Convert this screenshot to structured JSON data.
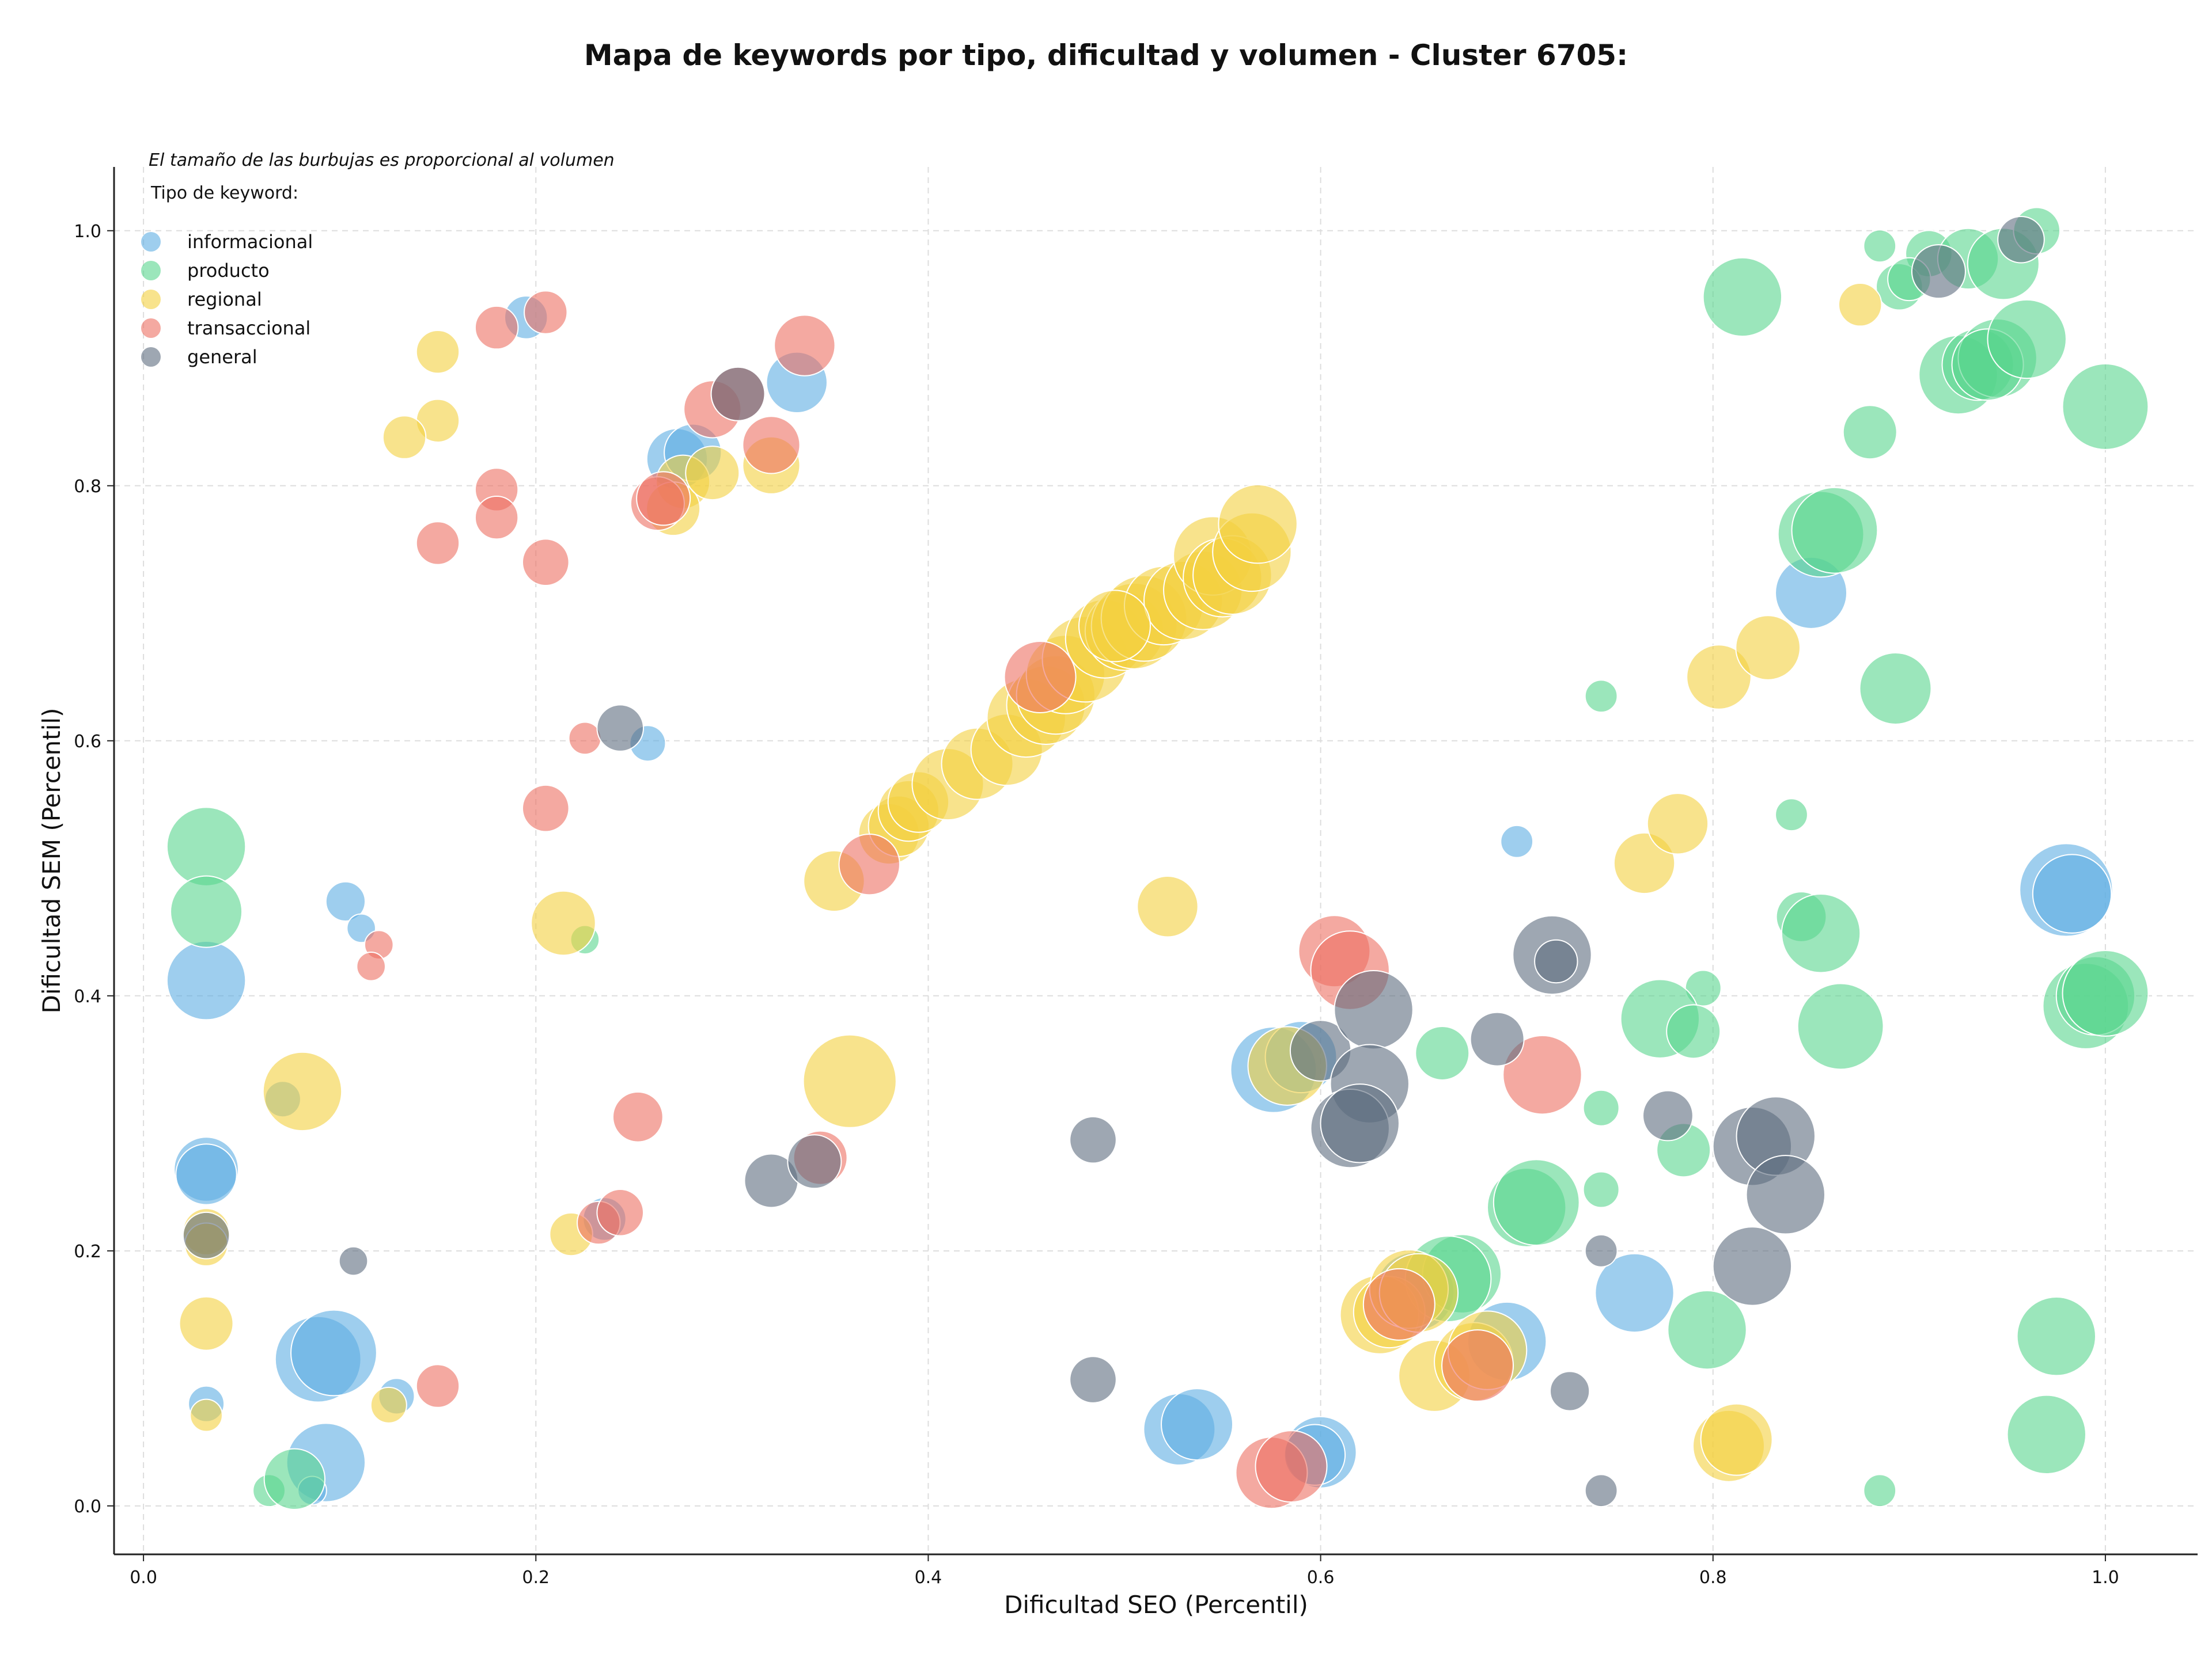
{
  "chart_data": {
    "type": "scatter",
    "title": "Mapa de keywords por tipo, dificultad y volumen - Cluster 6705:",
    "xlabel": "Dificultad SEO (Percentil)",
    "ylabel": "Dificultad SEM (Percentil)",
    "xlim": [
      -0.015,
      1.047
    ],
    "ylim": [
      -0.038,
      1.05
    ],
    "xticks": [
      "0.0",
      "0.2",
      "0.4",
      "0.6",
      "0.8",
      "1.0"
    ],
    "yticks": [
      "0.0",
      "0.2",
      "0.4",
      "0.6",
      "0.8",
      "1.0"
    ],
    "grid": true,
    "annotation": "El tamaño de las burbujas es proporcional al volumen",
    "legend": {
      "title": "Tipo de keyword:",
      "position": "top-left",
      "entries": [
        "informacional",
        "producto",
        "regional",
        "transaccional",
        "general"
      ]
    },
    "series": [
      {
        "name": "informacional",
        "color": "#5DADE2",
        "points": [
          [
            0.195,
            0.932,
            12
          ],
          [
            0.333,
            0.881,
            17
          ],
          [
            0.272,
            0.821,
            17
          ],
          [
            0.28,
            0.826,
            16
          ],
          [
            0.257,
            0.598,
            10
          ],
          [
            0.103,
            0.474,
            11
          ],
          [
            0.111,
            0.453,
            8
          ],
          [
            0.032,
            0.412,
            22
          ],
          [
            0.071,
            0.319,
            10
          ],
          [
            0.032,
            0.264,
            18
          ],
          [
            0.032,
            0.26,
            17
          ],
          [
            0.089,
            0.115,
            24
          ],
          [
            0.097,
            0.12,
            24
          ],
          [
            0.129,
            0.086,
            10
          ],
          [
            0.093,
            0.034,
            22
          ],
          [
            0.086,
            0.012,
            8
          ],
          [
            0.032,
            0.08,
            10
          ],
          [
            0.235,
            0.225,
            12
          ],
          [
            0.7,
            0.521,
            9
          ],
          [
            0.85,
            0.716,
            20
          ],
          [
            0.98,
            0.483,
            26
          ],
          [
            0.983,
            0.48,
            22
          ],
          [
            0.576,
            0.342,
            24
          ],
          [
            0.59,
            0.352,
            20
          ],
          [
            0.76,
            0.167,
            22
          ],
          [
            0.695,
            0.129,
            22
          ],
          [
            0.648,
            0.168,
            22
          ],
          [
            0.528,
            0.06,
            20
          ],
          [
            0.537,
            0.064,
            20
          ],
          [
            0.6,
            0.042,
            20
          ],
          [
            0.597,
            0.04,
            17
          ]
        ]
      },
      {
        "name": "producto",
        "color": "#58D68D",
        "points": [
          [
            0.032,
            0.517,
            22
          ],
          [
            0.032,
            0.466,
            20
          ],
          [
            0.225,
            0.444,
            8
          ],
          [
            0.064,
            0.012,
            9
          ],
          [
            0.077,
            0.021,
            17
          ],
          [
            0.885,
            0.988,
            9
          ],
          [
            0.91,
            0.982,
            13
          ],
          [
            0.93,
            0.978,
            17
          ],
          [
            0.948,
            0.974,
            20
          ],
          [
            0.965,
            1.0,
            13
          ],
          [
            0.895,
            0.956,
            13
          ],
          [
            0.9,
            0.962,
            12
          ],
          [
            0.815,
            0.948,
            22
          ],
          [
            0.925,
            0.887,
            22
          ],
          [
            0.935,
            0.895,
            20
          ],
          [
            0.945,
            0.9,
            22
          ],
          [
            0.94,
            0.895,
            20
          ],
          [
            0.96,
            0.915,
            22
          ],
          [
            1.0,
            0.862,
            24
          ],
          [
            0.88,
            0.842,
            15
          ],
          [
            0.855,
            0.762,
            24
          ],
          [
            0.862,
            0.765,
            24
          ],
          [
            0.743,
            0.635,
            9
          ],
          [
            0.893,
            0.641,
            20
          ],
          [
            0.84,
            0.542,
            9
          ],
          [
            0.845,
            0.462,
            14
          ],
          [
            0.855,
            0.449,
            22
          ],
          [
            0.865,
            0.376,
            24
          ],
          [
            0.795,
            0.406,
            10
          ],
          [
            0.773,
            0.382,
            22
          ],
          [
            0.79,
            0.372,
            15
          ],
          [
            0.662,
            0.355,
            15
          ],
          [
            0.743,
            0.312,
            10
          ],
          [
            0.743,
            0.248,
            10
          ],
          [
            0.705,
            0.234,
            22
          ],
          [
            0.71,
            0.238,
            24
          ],
          [
            0.785,
            0.279,
            15
          ],
          [
            0.797,
            0.138,
            22
          ],
          [
            0.672,
            0.182,
            22
          ],
          [
            0.665,
            0.178,
            24
          ],
          [
            0.975,
            0.133,
            22
          ],
          [
            0.97,
            0.056,
            22
          ],
          [
            0.885,
            0.012,
            9
          ],
          [
            0.99,
            0.392,
            24
          ],
          [
            0.995,
            0.4,
            22
          ],
          [
            1.0,
            0.402,
            24
          ]
        ]
      },
      {
        "name": "regional",
        "color": "#F4D03F",
        "points": [
          [
            0.15,
            0.905,
            12
          ],
          [
            0.15,
            0.851,
            12
          ],
          [
            0.133,
            0.838,
            12
          ],
          [
            0.32,
            0.816,
            16
          ],
          [
            0.275,
            0.803,
            15
          ],
          [
            0.27,
            0.782,
            15
          ],
          [
            0.29,
            0.81,
            15
          ],
          [
            0.214,
            0.457,
            18
          ],
          [
            0.081,
            0.325,
            22
          ],
          [
            0.032,
            0.215,
            13
          ],
          [
            0.032,
            0.205,
            12
          ],
          [
            0.032,
            0.143,
            15
          ],
          [
            0.032,
            0.071,
            9
          ],
          [
            0.125,
            0.079,
            10
          ],
          [
            0.218,
            0.213,
            12
          ],
          [
            0.36,
            0.333,
            26
          ],
          [
            0.352,
            0.49,
            17
          ],
          [
            0.38,
            0.527,
            17
          ],
          [
            0.385,
            0.533,
            17
          ],
          [
            0.39,
            0.545,
            17
          ],
          [
            0.395,
            0.552,
            17
          ],
          [
            0.41,
            0.566,
            20
          ],
          [
            0.425,
            0.582,
            20
          ],
          [
            0.44,
            0.593,
            20
          ],
          [
            0.45,
            0.618,
            22
          ],
          [
            0.46,
            0.628,
            22
          ],
          [
            0.465,
            0.636,
            22
          ],
          [
            0.47,
            0.652,
            22
          ],
          [
            0.48,
            0.664,
            24
          ],
          [
            0.49,
            0.68,
            22
          ],
          [
            0.5,
            0.686,
            22
          ],
          [
            0.505,
            0.69,
            24
          ],
          [
            0.51,
            0.696,
            24
          ],
          [
            0.52,
            0.706,
            22
          ],
          [
            0.53,
            0.71,
            22
          ],
          [
            0.54,
            0.718,
            22
          ],
          [
            0.545,
            0.745,
            22
          ],
          [
            0.55,
            0.728,
            22
          ],
          [
            0.555,
            0.73,
            22
          ],
          [
            0.565,
            0.748,
            22
          ],
          [
            0.568,
            0.77,
            22
          ],
          [
            0.495,
            0.69,
            20
          ],
          [
            0.522,
            0.47,
            17
          ],
          [
            0.765,
            0.504,
            17
          ],
          [
            0.782,
            0.535,
            17
          ],
          [
            0.803,
            0.65,
            18
          ],
          [
            0.828,
            0.673,
            18
          ],
          [
            0.875,
            0.942,
            12
          ],
          [
            0.808,
            0.047,
            20
          ],
          [
            0.812,
            0.052,
            20
          ],
          [
            0.658,
            0.102,
            20
          ],
          [
            0.678,
            0.113,
            22
          ],
          [
            0.685,
            0.122,
            22
          ],
          [
            0.63,
            0.15,
            22
          ],
          [
            0.635,
            0.152,
            20
          ],
          [
            0.645,
            0.17,
            22
          ],
          [
            0.65,
            0.167,
            22
          ],
          [
            0.583,
            0.345,
            22
          ]
        ]
      },
      {
        "name": "transaccional",
        "color": "#EC7063",
        "points": [
          [
            0.18,
            0.924,
            12
          ],
          [
            0.205,
            0.936,
            12
          ],
          [
            0.337,
            0.91,
            17
          ],
          [
            0.29,
            0.86,
            16
          ],
          [
            0.32,
            0.832,
            16
          ],
          [
            0.18,
            0.797,
            12
          ],
          [
            0.18,
            0.775,
            12
          ],
          [
            0.15,
            0.755,
            12
          ],
          [
            0.205,
            0.74,
            13
          ],
          [
            0.262,
            0.786,
            15
          ],
          [
            0.265,
            0.79,
            15
          ],
          [
            0.225,
            0.602,
            9
          ],
          [
            0.205,
            0.547,
            13
          ],
          [
            0.12,
            0.44,
            8
          ],
          [
            0.116,
            0.423,
            8
          ],
          [
            0.252,
            0.305,
            14
          ],
          [
            0.15,
            0.094,
            12
          ],
          [
            0.232,
            0.222,
            12
          ],
          [
            0.243,
            0.23,
            13
          ],
          [
            0.345,
            0.273,
            15
          ],
          [
            0.37,
            0.503,
            17
          ],
          [
            0.457,
            0.65,
            20
          ],
          [
            0.303,
            0.872,
            15
          ],
          [
            0.607,
            0.435,
            20
          ],
          [
            0.615,
            0.42,
            22
          ],
          [
            0.713,
            0.338,
            22
          ],
          [
            0.575,
            0.026,
            20
          ],
          [
            0.585,
            0.031,
            20
          ],
          [
            0.64,
            0.158,
            20
          ],
          [
            0.68,
            0.11,
            20
          ]
        ]
      },
      {
        "name": "general",
        "color": "#5D6D7E",
        "points": [
          [
            0.303,
            0.872,
            15
          ],
          [
            0.243,
            0.61,
            13
          ],
          [
            0.107,
            0.192,
            8
          ],
          [
            0.032,
            0.212,
            13
          ],
          [
            0.32,
            0.255,
            15
          ],
          [
            0.342,
            0.27,
            15
          ],
          [
            0.484,
            0.287,
            13
          ],
          [
            0.484,
            0.099,
            13
          ],
          [
            0.6,
            0.357,
            17
          ],
          [
            0.627,
            0.389,
            22
          ],
          [
            0.625,
            0.331,
            22
          ],
          [
            0.615,
            0.296,
            22
          ],
          [
            0.62,
            0.3,
            22
          ],
          [
            0.69,
            0.366,
            15
          ],
          [
            0.718,
            0.432,
            22
          ],
          [
            0.72,
            0.427,
            12
          ],
          [
            0.743,
            0.2,
            9
          ],
          [
            0.743,
            0.012,
            9
          ],
          [
            0.727,
            0.09,
            11
          ],
          [
            0.777,
            0.306,
            14
          ],
          [
            0.82,
            0.282,
            22
          ],
          [
            0.832,
            0.29,
            22
          ],
          [
            0.837,
            0.244,
            22
          ],
          [
            0.82,
            0.188,
            22
          ],
          [
            0.915,
            0.968,
            15
          ],
          [
            0.957,
            0.993,
            13
          ]
        ]
      }
    ]
  }
}
